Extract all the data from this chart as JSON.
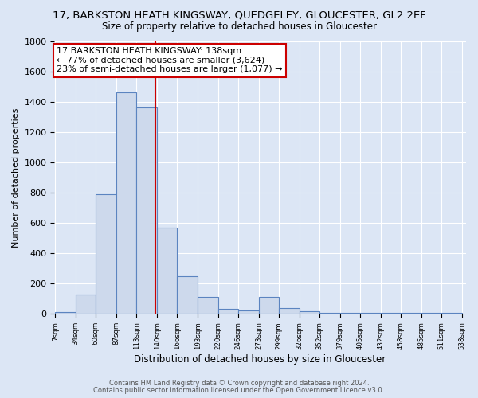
{
  "title": "17, BARKSTON HEATH KINGSWAY, QUEDGELEY, GLOUCESTER, GL2 2EF",
  "subtitle": "Size of property relative to detached houses in Gloucester",
  "xlabel": "Distribution of detached houses by size in Gloucester",
  "ylabel": "Number of detached properties",
  "bin_edges": [
    7,
    34,
    60,
    87,
    113,
    140,
    166,
    193,
    220,
    246,
    273,
    299,
    326,
    352,
    379,
    405,
    432,
    458,
    485,
    511,
    538
  ],
  "bar_heights": [
    10,
    130,
    790,
    1460,
    1360,
    570,
    250,
    110,
    35,
    25,
    110,
    40,
    20,
    5,
    5,
    5,
    5,
    5,
    5,
    5
  ],
  "bar_color": "#cdd9ec",
  "bar_edge_color": "#5b84c0",
  "property_line_x": 138,
  "property_line_color": "#cc0000",
  "annotation_text": "17 BARKSTON HEATH KINGSWAY: 138sqm\n← 77% of detached houses are smaller (3,624)\n23% of semi-detached houses are larger (1,077) →",
  "annotation_box_color": "#ffffff",
  "annotation_box_edge_color": "#cc0000",
  "ylim": [
    0,
    1800
  ],
  "yticks": [
    0,
    200,
    400,
    600,
    800,
    1000,
    1200,
    1400,
    1600,
    1800
  ],
  "bg_color": "#dce6f5",
  "grid_color": "#ffffff",
  "footer_line1": "Contains HM Land Registry data © Crown copyright and database right 2024.",
  "footer_line2": "Contains public sector information licensed under the Open Government Licence v3.0.",
  "title_fontsize": 9.5,
  "subtitle_fontsize": 8.5,
  "annot_fontsize": 8.0
}
